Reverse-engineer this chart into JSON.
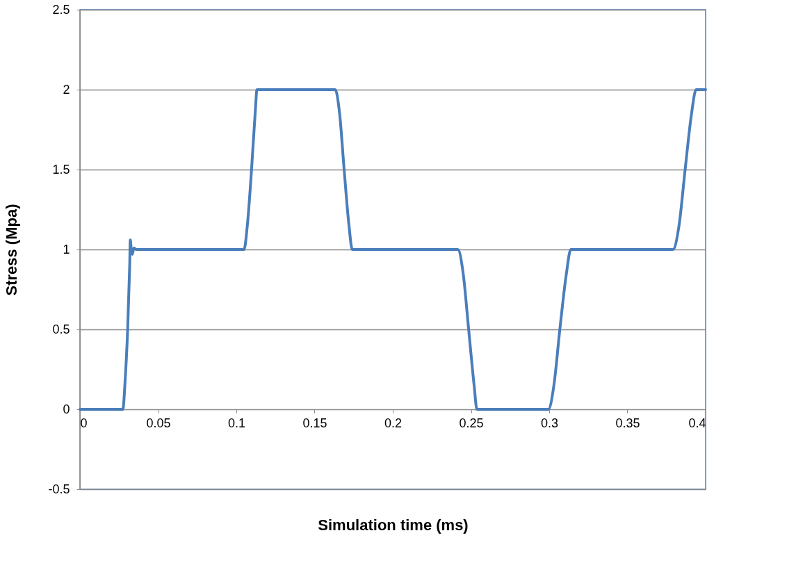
{
  "chart_data": {
    "type": "line",
    "xlabel": "Simulation time (ms)",
    "ylabel": "Stress (Mpa)",
    "x": [
      0,
      0.0274,
      0.029,
      0.0305,
      0.0318,
      0.0322,
      0.0328,
      0.0335,
      0.0345,
      0.036,
      0.1049,
      0.107,
      0.1097,
      0.112,
      0.1132,
      0.1632,
      0.166,
      0.1689,
      0.172,
      0.1741,
      0.2416,
      0.245,
      0.2485,
      0.252,
      0.2538,
      0.2995,
      0.303,
      0.3068,
      0.311,
      0.3138,
      0.3791,
      0.383,
      0.3869,
      0.391,
      0.3939,
      0.4
    ],
    "series": [
      {
        "color": "#4a7ebb",
        "values": [
          0,
          0,
          0.2,
          0.5,
          0.9,
          1.06,
          1.0,
          0.97,
          1.01,
          1,
          1,
          1.15,
          1.5,
          1.85,
          2,
          2,
          1.85,
          1.5,
          1.15,
          1,
          1,
          0.85,
          0.5,
          0.15,
          0,
          0,
          0.15,
          0.5,
          0.85,
          1,
          1,
          1.15,
          1.5,
          1.85,
          2,
          2
        ]
      }
    ],
    "xlim": [
      0,
      0.4
    ],
    "xticks": [
      0,
      0.05,
      0.1,
      0.15,
      0.2,
      0.25,
      0.3,
      0.35,
      0.4
    ],
    "ylim": [
      -0.5,
      2.5
    ],
    "yticks": [
      -0.5,
      0,
      0.5,
      1,
      1.5,
      2,
      2.5
    ],
    "grid": "y",
    "legend": false,
    "marker": "none",
    "line_style": "solid"
  }
}
